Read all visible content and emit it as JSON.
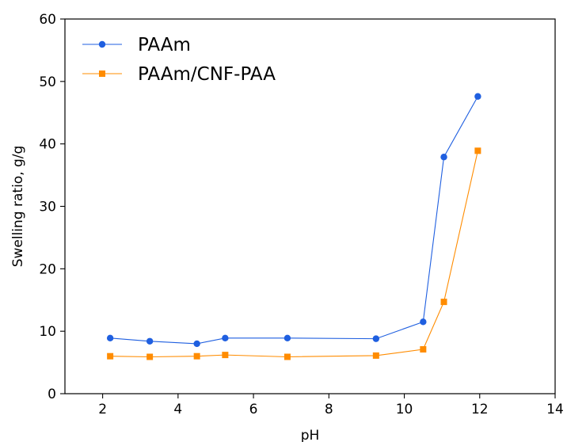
{
  "chart_data": {
    "type": "line",
    "xlabel": "pH",
    "ylabel": "Swelling ratio, g/g",
    "xlim": [
      1,
      14
    ],
    "ylim": [
      0,
      60
    ],
    "xticks": [
      2,
      4,
      6,
      8,
      10,
      12,
      14
    ],
    "yticks": [
      0,
      10,
      20,
      30,
      40,
      50,
      60
    ],
    "grid": false,
    "legend_position": "top-left",
    "series": [
      {
        "name": "PAAm",
        "color": "#1f5fe0",
        "marker": "circle",
        "x": [
          2.2,
          3.25,
          4.5,
          5.25,
          6.9,
          9.25,
          10.5,
          11.05,
          11.95
        ],
        "y": [
          8.9,
          8.4,
          8.0,
          8.9,
          8.9,
          8.8,
          11.5,
          37.9,
          47.6
        ]
      },
      {
        "name": "PAAm/CNF-PAA",
        "color": "#ff8c00",
        "marker": "square",
        "x": [
          2.2,
          3.25,
          4.5,
          5.25,
          6.9,
          9.25,
          10.5,
          11.05,
          11.95
        ],
        "y": [
          6.0,
          5.9,
          6.0,
          6.2,
          5.9,
          6.1,
          7.1,
          14.7,
          38.9
        ]
      }
    ]
  }
}
